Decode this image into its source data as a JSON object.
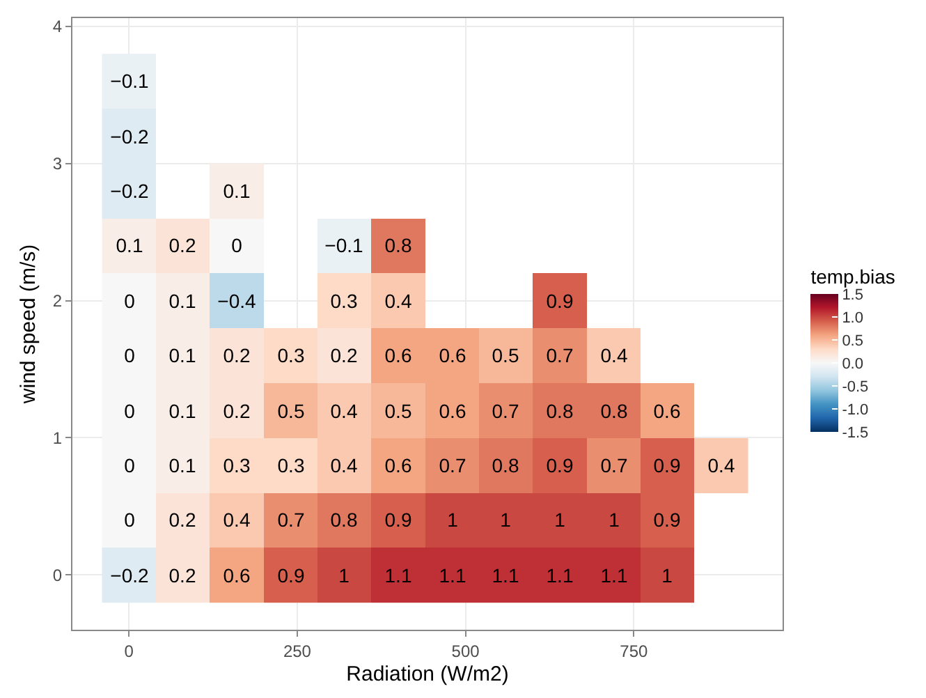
{
  "chart_data": {
    "type": "heatmap",
    "xlabel": "Radiation (W/m2)",
    "ylabel": "wind speed (m/s)",
    "clabel": "temp.bias",
    "x": [
      0,
      80,
      160,
      240,
      320,
      400,
      480,
      560,
      640,
      720,
      800,
      880
    ],
    "y": [
      3.6,
      3.2,
      2.8,
      2.4,
      2.0,
      1.6,
      1.2,
      0.8,
      0.4,
      0
    ],
    "cells": [
      [
        -0.1,
        null,
        null,
        null,
        null,
        null,
        null,
        null,
        null,
        null,
        null,
        null
      ],
      [
        -0.2,
        null,
        null,
        null,
        null,
        null,
        null,
        null,
        null,
        null,
        null,
        null
      ],
      [
        -0.2,
        null,
        0.1,
        null,
        null,
        null,
        null,
        null,
        null,
        null,
        null,
        null
      ],
      [
        0.1,
        0.2,
        0,
        null,
        -0.1,
        0.8,
        null,
        null,
        null,
        null,
        null,
        null
      ],
      [
        0,
        0.1,
        -0.4,
        null,
        0.3,
        0.4,
        null,
        null,
        0.9,
        null,
        null,
        null
      ],
      [
        0,
        0.1,
        0.2,
        0.3,
        0.2,
        0.6,
        0.6,
        0.5,
        0.7,
        0.4,
        null,
        null
      ],
      [
        0,
        0.1,
        0.2,
        0.5,
        0.4,
        0.5,
        0.6,
        0.7,
        0.8,
        0.8,
        0.6,
        null
      ],
      [
        0,
        0.1,
        0.3,
        0.3,
        0.4,
        0.6,
        0.7,
        0.8,
        0.9,
        0.7,
        0.9,
        0.4
      ],
      [
        0,
        0.2,
        0.4,
        0.7,
        0.8,
        0.9,
        1,
        1,
        1,
        1,
        0.9,
        null
      ],
      [
        -0.2,
        0.2,
        0.6,
        0.9,
        1,
        1.1,
        1.1,
        1.1,
        1.1,
        1.1,
        1,
        null
      ]
    ],
    "data_labels": true,
    "colors": [
      "#053061",
      "#2166ac",
      "#4393c3",
      "#92c5de",
      "#d1e5f0",
      "#f7f7f7",
      "#fddbc7",
      "#f4a582",
      "#d6604d",
      "#b2182b",
      "#67001f"
    ],
    "clim": [
      -1.5,
      1.5
    ],
    "cticks": [
      {
        "value": -1.5,
        "label": "-1.5"
      },
      {
        "value": -1.0,
        "label": "-1.0"
      },
      {
        "value": -0.5,
        "label": "-0.5"
      },
      {
        "value": 0,
        "label": "0.0"
      },
      {
        "value": 0.5,
        "label": "0.5"
      },
      {
        "value": 1.0,
        "label": "1.0"
      },
      {
        "value": 1.5,
        "label": "1.5"
      }
    ],
    "xlim": [
      -84,
      971
    ],
    "ylim": [
      -0.4,
      4.06
    ],
    "xticks": [
      0,
      250,
      500,
      750
    ],
    "yticks": [
      0,
      1,
      2,
      3,
      4
    ],
    "grid": true
  }
}
